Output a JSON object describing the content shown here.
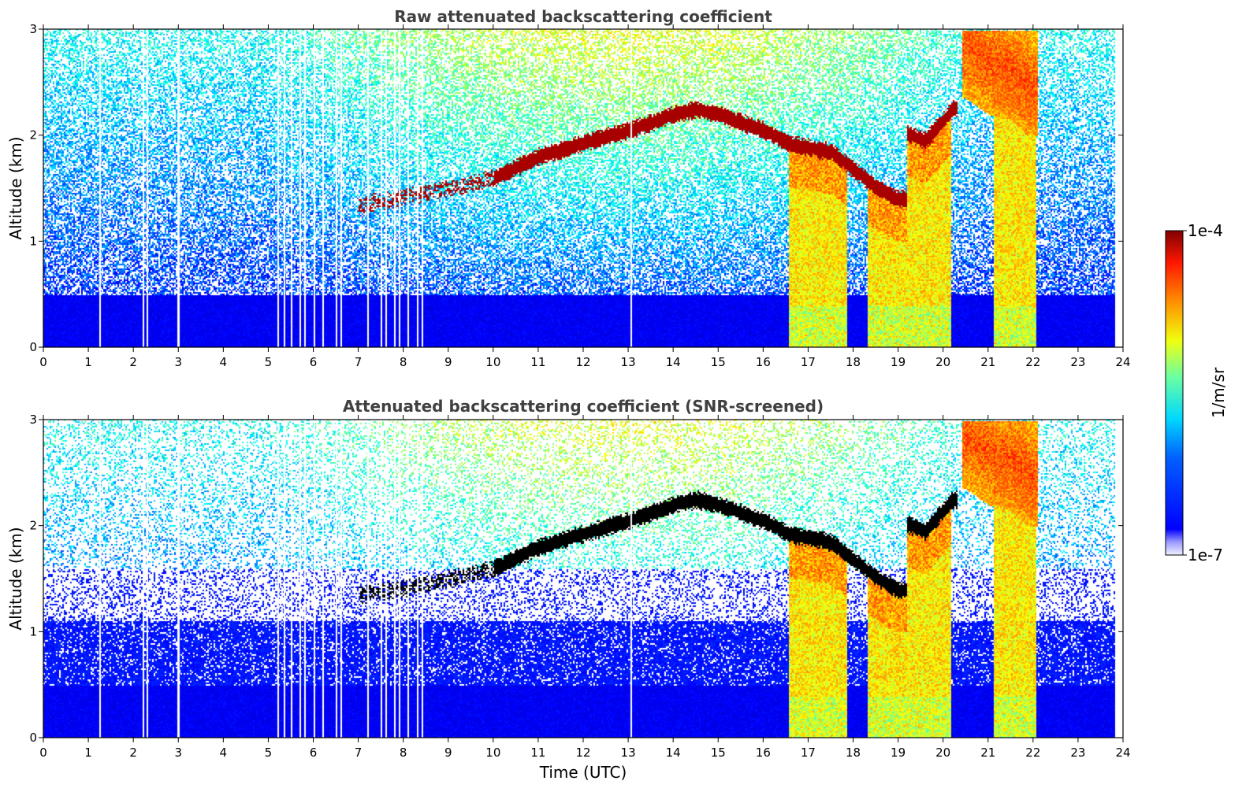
{
  "chart_data": [
    {
      "type": "heatmap",
      "title": "Raw attenuated backscattering coefficient",
      "xlabel": "",
      "ylabel": "Altitude (km)",
      "xlim": [
        0,
        24
      ],
      "ylim": [
        0,
        3
      ],
      "xticks": [
        "0",
        "1",
        "2",
        "3",
        "4",
        "5",
        "6",
        "7",
        "8",
        "9",
        "10",
        "11",
        "12",
        "13",
        "14",
        "15",
        "16",
        "17",
        "18",
        "19",
        "20",
        "21",
        "22",
        "23",
        "24"
      ],
      "yticks": [
        "0",
        "1",
        "2",
        "3"
      ],
      "data_end_time": 23.8,
      "screening": "raw",
      "features": {
        "cloud_layer_top_km": [
          {
            "t": 7.0,
            "h": 1.35
          },
          {
            "t": 8.0,
            "h": 1.42
          },
          {
            "t": 9.0,
            "h": 1.5
          },
          {
            "t": 10.0,
            "h": 1.6
          },
          {
            "t": 11.0,
            "h": 1.8
          },
          {
            "t": 12.0,
            "h": 1.93
          },
          {
            "t": 13.0,
            "h": 2.05
          },
          {
            "t": 14.0,
            "h": 2.2
          },
          {
            "t": 14.5,
            "h": 2.25
          },
          {
            "t": 15.0,
            "h": 2.2
          },
          {
            "t": 16.0,
            "h": 2.05
          },
          {
            "t": 16.6,
            "h": 1.92
          },
          {
            "t": 17.5,
            "h": 1.85
          },
          {
            "t": 18.0,
            "h": 1.68
          },
          {
            "t": 18.5,
            "h": 1.52
          },
          {
            "t": 19.0,
            "h": 1.4
          },
          {
            "t": 19.2,
            "h": 2.02
          },
          {
            "t": 19.6,
            "h": 1.95
          },
          {
            "t": 20.2,
            "h": 2.25
          }
        ],
        "upper_cloud_km": [
          {
            "t": 20.5,
            "h": 2.85
          },
          {
            "t": 21.0,
            "h": 2.7
          },
          {
            "t": 21.5,
            "h": 2.65
          },
          {
            "t": 22.0,
            "h": 2.45
          }
        ],
        "precipitation_intervals_utc": [
          [
            16.55,
            17.85
          ],
          [
            18.3,
            20.15
          ],
          [
            21.1,
            22.05
          ]
        ],
        "gap_times_utc": [
          1.25,
          2.2,
          2.3,
          2.97,
          3.0,
          5.2,
          5.35,
          5.5,
          5.7,
          5.8,
          6.0,
          6.2,
          6.5,
          6.6,
          7.2,
          7.5,
          7.6,
          7.8,
          7.9,
          8.1,
          8.3,
          8.4,
          13.05
        ]
      }
    },
    {
      "type": "heatmap",
      "title": "Attenuated backscattering coefficient (SNR-screened)",
      "xlabel": "Time (UTC)",
      "ylabel": "Altitude (km)",
      "xlim": [
        0,
        24
      ],
      "ylim": [
        0,
        3
      ],
      "xticks": [
        "0",
        "1",
        "2",
        "3",
        "4",
        "5",
        "6",
        "7",
        "8",
        "9",
        "10",
        "11",
        "12",
        "13",
        "14",
        "15",
        "16",
        "17",
        "18",
        "19",
        "20",
        "21",
        "22",
        "23",
        "24"
      ],
      "yticks": [
        "0",
        "1",
        "2",
        "3"
      ],
      "data_end_time": 23.8,
      "screening": "snr",
      "features": {
        "cloud_layer_top_km": [
          {
            "t": 7.0,
            "h": 1.35
          },
          {
            "t": 8.0,
            "h": 1.42
          },
          {
            "t": 9.0,
            "h": 1.5
          },
          {
            "t": 10.0,
            "h": 1.6
          },
          {
            "t": 11.0,
            "h": 1.8
          },
          {
            "t": 12.0,
            "h": 1.93
          },
          {
            "t": 13.0,
            "h": 2.05
          },
          {
            "t": 14.0,
            "h": 2.2
          },
          {
            "t": 14.5,
            "h": 2.25
          },
          {
            "t": 15.0,
            "h": 2.2
          },
          {
            "t": 16.0,
            "h": 2.05
          },
          {
            "t": 16.6,
            "h": 1.92
          },
          {
            "t": 17.5,
            "h": 1.85
          },
          {
            "t": 18.0,
            "h": 1.68
          },
          {
            "t": 18.5,
            "h": 1.52
          },
          {
            "t": 19.0,
            "h": 1.4
          },
          {
            "t": 19.2,
            "h": 2.02
          },
          {
            "t": 19.6,
            "h": 1.95
          },
          {
            "t": 20.2,
            "h": 2.25
          }
        ],
        "upper_cloud_km": [
          {
            "t": 20.5,
            "h": 2.85
          },
          {
            "t": 21.0,
            "h": 2.7
          },
          {
            "t": 21.5,
            "h": 2.65
          },
          {
            "t": 22.0,
            "h": 2.45
          }
        ],
        "precipitation_intervals_utc": [
          [
            16.55,
            17.85
          ],
          [
            18.3,
            20.15
          ],
          [
            21.1,
            22.05
          ]
        ],
        "gap_times_utc": [
          1.25,
          2.2,
          2.3,
          2.97,
          3.0,
          5.2,
          5.35,
          5.5,
          5.7,
          5.8,
          6.0,
          6.2,
          6.5,
          6.6,
          7.2,
          7.5,
          7.6,
          7.8,
          7.9,
          8.1,
          8.3,
          8.4,
          13.05
        ]
      }
    }
  ],
  "colorbar": {
    "label": "1/m/sr",
    "max_label": "1e-4",
    "min_label": "1e-7",
    "scale": "log",
    "colormap": "jet",
    "range": [
      1e-07,
      0.0001
    ]
  }
}
